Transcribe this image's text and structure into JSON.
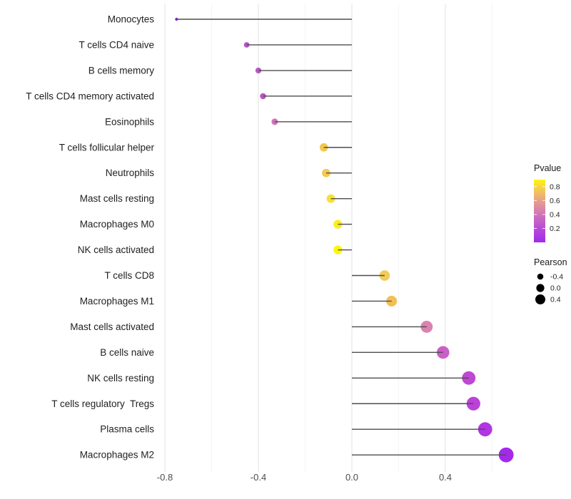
{
  "chart_data": {
    "type": "scatter",
    "variant": "lollipop",
    "title": "",
    "xlabel": "",
    "ylabel": "",
    "xlim": [
      -0.83,
      0.7
    ],
    "grid": "vertical-only",
    "x_major_ticks": [
      -0.8,
      -0.4,
      0.0,
      0.4
    ],
    "x_major_tick_labels": [
      "-0.8",
      "-0.4",
      "0.0",
      "0.4"
    ],
    "x_minor_ticks": [
      -0.6,
      -0.2,
      0.2,
      0.6
    ],
    "series_note": "x = Pearson correlation, dot color = Pvalue, dot size = Pearson",
    "points": [
      {
        "label": "Monocytes",
        "pearson": -0.75,
        "pvalue": 0.02,
        "color": "#8a21d8"
      },
      {
        "label": "T cells CD4 naive",
        "pearson": -0.45,
        "pvalue": 0.18,
        "color": "#b553c9"
      },
      {
        "label": "B cells memory",
        "pearson": -0.4,
        "pvalue": 0.22,
        "color": "#bd58c4"
      },
      {
        "label": "T cells CD4 memory activated",
        "pearson": -0.38,
        "pvalue": 0.21,
        "color": "#bb54c7"
      },
      {
        "label": "Eosinophils",
        "pearson": -0.33,
        "pvalue": 0.34,
        "color": "#d173b8"
      },
      {
        "label": "T cells follicular helper",
        "pearson": -0.12,
        "pvalue": 0.68,
        "color": "#f3c851"
      },
      {
        "label": "Neutrophils",
        "pearson": -0.11,
        "pvalue": 0.68,
        "color": "#f4c94f"
      },
      {
        "label": "Mast cells resting",
        "pearson": -0.09,
        "pvalue": 0.77,
        "color": "#f7e135"
      },
      {
        "label": "Macrophages M0",
        "pearson": -0.06,
        "pvalue": 0.82,
        "color": "#faee21"
      },
      {
        "label": "NK cells activated",
        "pearson": -0.06,
        "pvalue": 0.87,
        "color": "#fdf60e"
      },
      {
        "label": "T cells CD8",
        "pearson": 0.14,
        "pvalue": 0.72,
        "color": "#f2cc5a"
      },
      {
        "label": "Macrophages M1",
        "pearson": 0.17,
        "pvalue": 0.65,
        "color": "#f3bf55"
      },
      {
        "label": "Mast cells activated",
        "pearson": 0.32,
        "pvalue": 0.38,
        "color": "#db82ae"
      },
      {
        "label": "B cells naive",
        "pearson": 0.39,
        "pvalue": 0.27,
        "color": "#cb5ec7"
      },
      {
        "label": "NK cells resting",
        "pearson": 0.5,
        "pvalue": 0.18,
        "color": "#bf47d3"
      },
      {
        "label": "T cells regulatory  Tregs",
        "pearson": 0.52,
        "pvalue": 0.15,
        "color": "#bc41d8"
      },
      {
        "label": "Plasma cells",
        "pearson": 0.57,
        "pvalue": 0.09,
        "color": "#b135e3"
      },
      {
        "label": "Macrophages M2",
        "pearson": 0.66,
        "pvalue": 0.04,
        "color": "#a42ae9"
      }
    ],
    "legend_pvalue": {
      "title": "Pvalue",
      "position": "right",
      "range": [
        0.0,
        0.9
      ],
      "tick_labels": [
        "0.8",
        "0.6",
        "0.4",
        "0.2"
      ],
      "tick_values": [
        0.8,
        0.6,
        0.4,
        0.2
      ],
      "gradient_bottom_to_top": [
        "#a02be9",
        "#bb50d4",
        "#d77eb0",
        "#efb272",
        "#fdf50f"
      ]
    },
    "legend_pearson": {
      "title": "Pearson",
      "position": "right",
      "entries": [
        {
          "label": "-0.4",
          "value": -0.4,
          "radius": 4.3
        },
        {
          "label": "0.0",
          "value": 0.0,
          "radius": 5.6
        },
        {
          "label": "0.4",
          "value": 0.4,
          "radius": 7.0
        }
      ],
      "dot_color": "#000000"
    },
    "style": {
      "background": "#ffffff",
      "segment_color": "#4d4d4d",
      "major_grid_color": "#e9e9e9",
      "minor_grid_color": "#f5f5f5"
    }
  }
}
